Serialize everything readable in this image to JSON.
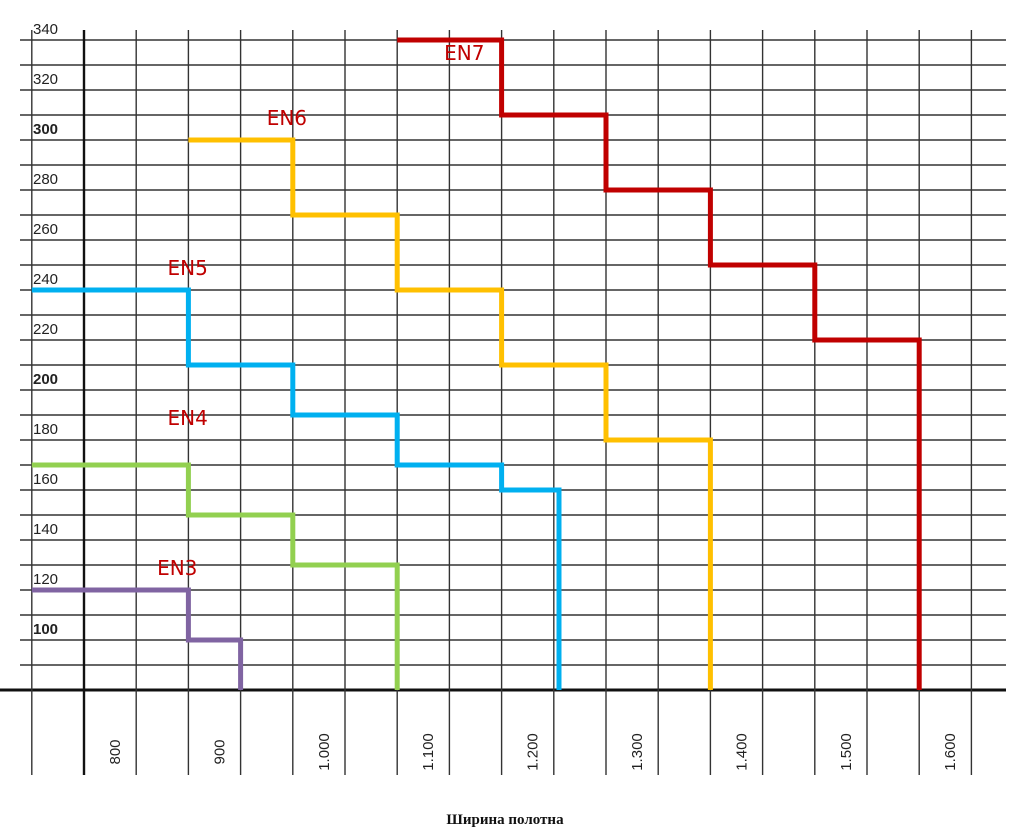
{
  "chart_data": {
    "type": "line",
    "title": "",
    "xlabel": "Ширина полотна",
    "ylabel": "",
    "x_ticks": [
      {
        "value": 800,
        "label": "800"
      },
      {
        "value": 900,
        "label": "900"
      },
      {
        "value": 1000,
        "label": "1.000"
      },
      {
        "value": 1100,
        "label": "1.100"
      },
      {
        "value": 1200,
        "label": "1.200"
      },
      {
        "value": 1300,
        "label": "1.300"
      },
      {
        "value": 1400,
        "label": "1.400"
      },
      {
        "value": 1500,
        "label": "1.500"
      },
      {
        "value": 1600,
        "label": "1.600"
      }
    ],
    "y_ticks": [
      {
        "value": 100,
        "label": "100",
        "bold": true
      },
      {
        "value": 120,
        "label": "120",
        "bold": false
      },
      {
        "value": 140,
        "label": "140",
        "bold": false
      },
      {
        "value": 160,
        "label": "160",
        "bold": false
      },
      {
        "value": 180,
        "label": "180",
        "bold": false
      },
      {
        "value": 200,
        "label": "200",
        "bold": true
      },
      {
        "value": 220,
        "label": "220",
        "bold": false
      },
      {
        "value": 240,
        "label": "240",
        "bold": false
      },
      {
        "value": 260,
        "label": "260",
        "bold": false
      },
      {
        "value": 280,
        "label": "280",
        "bold": false
      },
      {
        "value": 300,
        "label": "300",
        "bold": true
      },
      {
        "value": 320,
        "label": "320",
        "bold": false
      },
      {
        "value": 340,
        "label": "340",
        "bold": false
      }
    ],
    "xlim": [
      750,
      1650
    ],
    "ylim": [
      80,
      340
    ],
    "grid": true,
    "series": [
      {
        "name": "EN3",
        "color": "#8064a2",
        "label_anchor": [
          870,
          126
        ],
        "points": [
          [
            750,
            120
          ],
          [
            900,
            120
          ],
          [
            900,
            100
          ],
          [
            950,
            100
          ],
          [
            950,
            80
          ]
        ]
      },
      {
        "name": "EN4",
        "color": "#92d050",
        "label_anchor": [
          880,
          186
        ],
        "points": [
          [
            750,
            170
          ],
          [
            900,
            170
          ],
          [
            900,
            150
          ],
          [
            1000,
            150
          ],
          [
            1000,
            130
          ],
          [
            1100,
            130
          ],
          [
            1100,
            80
          ]
        ]
      },
      {
        "name": "EN5",
        "color": "#00b0f0",
        "label_anchor": [
          880,
          246
        ],
        "points": [
          [
            750,
            240
          ],
          [
            900,
            240
          ],
          [
            900,
            210
          ],
          [
            1000,
            210
          ],
          [
            1000,
            190
          ],
          [
            1100,
            190
          ],
          [
            1100,
            170
          ],
          [
            1200,
            170
          ],
          [
            1200,
            160
          ],
          [
            1255,
            160
          ],
          [
            1255,
            80
          ]
        ]
      },
      {
        "name": "EN6",
        "color": "#ffc000",
        "label_anchor": [
          975,
          306
        ],
        "points": [
          [
            900,
            300
          ],
          [
            1000,
            300
          ],
          [
            1000,
            270
          ],
          [
            1100,
            270
          ],
          [
            1100,
            240
          ],
          [
            1200,
            240
          ],
          [
            1200,
            210
          ],
          [
            1300,
            210
          ],
          [
            1300,
            180
          ],
          [
            1400,
            180
          ],
          [
            1400,
            80
          ]
        ]
      },
      {
        "name": "EN7",
        "color": "#c00000",
        "label_anchor": [
          1145,
          332
        ],
        "points": [
          [
            1100,
            340
          ],
          [
            1200,
            340
          ],
          [
            1200,
            310
          ],
          [
            1300,
            310
          ],
          [
            1300,
            280
          ],
          [
            1400,
            280
          ],
          [
            1400,
            250
          ],
          [
            1500,
            250
          ],
          [
            1500,
            220
          ],
          [
            1600,
            220
          ],
          [
            1600,
            80
          ]
        ]
      }
    ],
    "label_color": "#c00000"
  }
}
